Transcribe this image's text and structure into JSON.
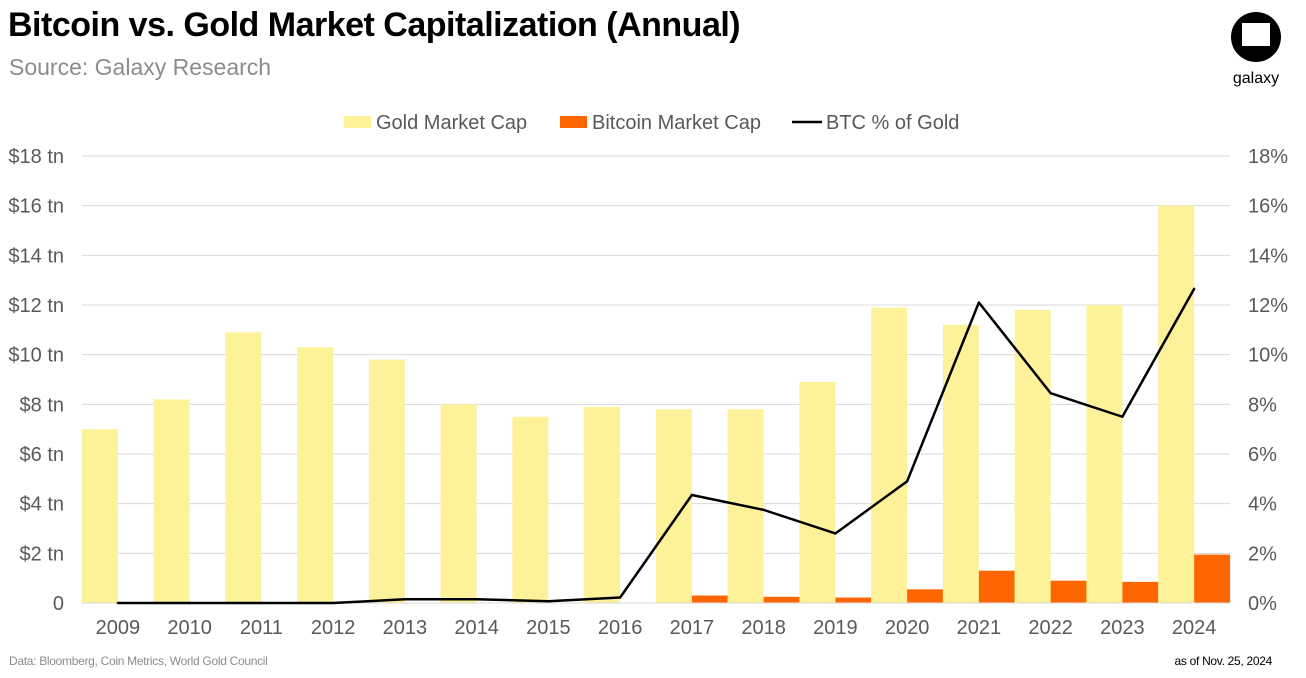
{
  "header": {
    "title": "Bitcoin vs. Gold Market Capitalization (Annual)",
    "subtitle": "Source: Galaxy Research"
  },
  "logo": {
    "text": "galaxy",
    "icon": "galaxy-logo-icon"
  },
  "footer": {
    "source": "Data: Bloomberg, Coin Metrics, World Gold Council",
    "date": "as of Nov. 25, 2024"
  },
  "colors": {
    "gold": "#fdf29a",
    "bitcoin": "#ff6600",
    "line": "#000000",
    "grid": "#d9d9d9",
    "axis_text": "#595959"
  },
  "chart_data": {
    "type": "bar",
    "categories": [
      "2009",
      "2010",
      "2011",
      "2012",
      "2013",
      "2014",
      "2015",
      "2016",
      "2017",
      "2018",
      "2019",
      "2020",
      "2021",
      "2022",
      "2023",
      "2024"
    ],
    "series": [
      {
        "name": "Gold Market Cap",
        "type": "bar",
        "axis": "left",
        "values": [
          7.0,
          8.2,
          10.9,
          10.3,
          9.8,
          8.0,
          7.5,
          7.9,
          7.8,
          7.8,
          8.9,
          11.9,
          11.2,
          11.8,
          12.0,
          16.0
        ]
      },
      {
        "name": "Bitcoin Market Cap",
        "type": "bar",
        "axis": "left",
        "values": [
          0.0,
          0.0,
          0.0,
          0.0,
          0.01,
          0.01,
          0.01,
          0.02,
          0.3,
          0.25,
          0.22,
          0.55,
          1.3,
          0.9,
          0.85,
          1.95
        ]
      },
      {
        "name": "BTC % of Gold",
        "type": "line",
        "axis": "right",
        "values": [
          0.0,
          0.0,
          0.0,
          0.0,
          0.15,
          0.15,
          0.07,
          0.22,
          4.35,
          3.75,
          2.8,
          4.9,
          12.1,
          8.45,
          7.5,
          12.65
        ]
      }
    ],
    "y_left": {
      "ylim": [
        0,
        18
      ],
      "ticks": [
        0,
        2,
        4,
        6,
        8,
        10,
        12,
        14,
        16,
        18
      ],
      "tick_labels": [
        "0",
        "$2 tn",
        "$4 tn",
        "$6 tn",
        "$8 tn",
        "$10 tn",
        "$12 tn",
        "$14 tn",
        "$16 tn",
        "$18 tn"
      ]
    },
    "y_right": {
      "ylim": [
        0,
        18
      ],
      "ticks": [
        0,
        2,
        4,
        6,
        8,
        10,
        12,
        14,
        16,
        18
      ],
      "tick_labels": [
        "0%",
        "2%",
        "4%",
        "6%",
        "8%",
        "10%",
        "12%",
        "14%",
        "16%",
        "18%"
      ]
    },
    "legend": {
      "position": "top-center",
      "entries": [
        "Gold Market Cap",
        "Bitcoin Market Cap",
        "BTC % of Gold"
      ]
    },
    "grid": true
  }
}
